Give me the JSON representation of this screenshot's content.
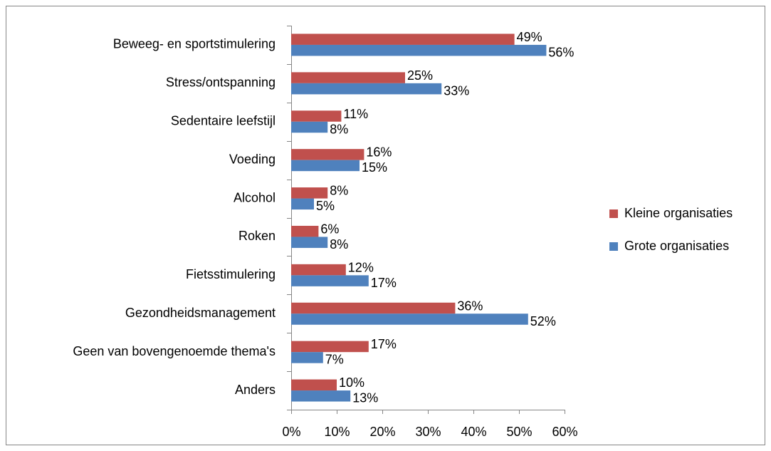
{
  "chart_data": {
    "type": "hbar",
    "categories": [
      "Beweeg- en sportstimulering",
      "Stress/ontspanning",
      "Sedentaire leefstijl",
      "Voeding",
      "Alcohol",
      "Roken",
      "Fietsstimulering",
      "Gezondheidsmanagement",
      "Geen van bovengenoemde thema's",
      "Anders"
    ],
    "series": [
      {
        "name": "Kleine organisaties",
        "color": "#c0504d",
        "values": [
          49,
          25,
          11,
          16,
          8,
          6,
          12,
          36,
          17,
          10
        ],
        "value_labels": [
          "49%",
          "25%",
          "11%",
          "16%",
          "8%",
          "6%",
          "12%",
          "36%",
          "17%",
          "10%"
        ]
      },
      {
        "name": "Grote organisaties",
        "color": "#4f81bd",
        "values": [
          56,
          33,
          8,
          15,
          5,
          8,
          17,
          52,
          7,
          13
        ],
        "value_labels": [
          "56%",
          "33%",
          "8%",
          "15%",
          "5%",
          "8%",
          "17%",
          "52%",
          "7%",
          "13%"
        ]
      }
    ],
    "xlim": [
      0,
      60
    ],
    "xticks": [
      {
        "value": 0,
        "label": "0%"
      },
      {
        "value": 10,
        "label": "10%"
      },
      {
        "value": 20,
        "label": "20%"
      },
      {
        "value": 30,
        "label": "30%"
      },
      {
        "value": 40,
        "label": "40%"
      },
      {
        "value": 50,
        "label": "50%"
      },
      {
        "value": 60,
        "label": "60%"
      }
    ],
    "legend": "right"
  }
}
